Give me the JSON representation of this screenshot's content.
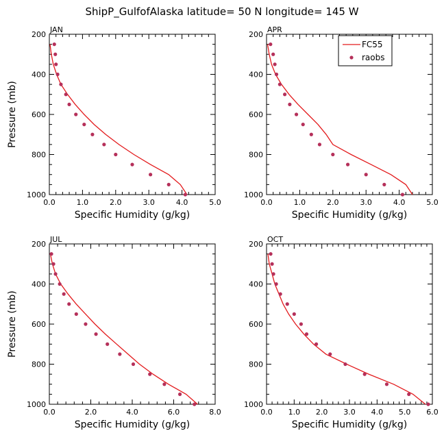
{
  "figure": {
    "title": "ShipP_GulfofAlaska  latitude= 50 N longitude= 145 W"
  },
  "colors": {
    "model_line": "#e31a1c",
    "obs_marker": "#b5305a",
    "axes": "#000000"
  },
  "legend": {
    "placement": "top-right of APR panel",
    "entries": [
      {
        "label": "FC55",
        "style": "line"
      },
      {
        "label": "raobs",
        "style": "marker"
      }
    ]
  },
  "chart_data": [
    {
      "type": "line",
      "panel_label": "JAN",
      "xlabel": "Specific Humidity (g/kg)",
      "ylabel": "Pressure (mb)",
      "xlim": [
        0,
        5
      ],
      "ylim": [
        1000,
        200
      ],
      "xticks": [
        "0.0",
        "1.0",
        "2.0",
        "3.0",
        "4.0",
        "5.0"
      ],
      "yticks": [
        "200",
        "400",
        "600",
        "800",
        "1000"
      ],
      "grid": false,
      "series": [
        {
          "name": "FC55",
          "style": "line",
          "x": [
            0.02,
            0.06,
            0.12,
            0.22,
            0.35,
            0.55,
            0.78,
            1.05,
            1.35,
            1.7,
            2.1,
            2.55,
            3.05,
            3.6,
            3.95,
            4.15
          ],
          "y": [
            250,
            300,
            350,
            400,
            450,
            500,
            550,
            600,
            650,
            700,
            750,
            800,
            850,
            900,
            950,
            1000
          ]
        },
        {
          "name": "raobs",
          "style": "marker",
          "x": [
            0.15,
            0.18,
            0.2,
            0.25,
            0.35,
            0.5,
            0.6,
            0.8,
            1.05,
            1.3,
            1.65,
            2.0,
            2.5,
            3.05,
            3.6,
            4.1
          ],
          "y": [
            250,
            300,
            350,
            400,
            450,
            500,
            550,
            600,
            650,
            700,
            750,
            800,
            850,
            900,
            950,
            1000
          ]
        }
      ]
    },
    {
      "type": "line",
      "panel_label": "APR",
      "xlabel": "Specific Humidity (g/kg)",
      "ylabel": "",
      "xlim": [
        0,
        5
      ],
      "ylim": [
        1000,
        200
      ],
      "xticks": [
        "0.0",
        "1.0",
        "2.0",
        "3.0",
        "4.0",
        "5.0"
      ],
      "yticks": [
        "200",
        "400",
        "600",
        "800",
        "1000"
      ],
      "grid": false,
      "series": [
        {
          "name": "FC55",
          "style": "line",
          "x": [
            0.03,
            0.08,
            0.15,
            0.27,
            0.45,
            0.68,
            0.95,
            1.25,
            1.55,
            1.8,
            2.0,
            2.55,
            3.15,
            3.75,
            4.2,
            4.4
          ],
          "y": [
            250,
            300,
            350,
            400,
            450,
            500,
            550,
            600,
            650,
            700,
            750,
            800,
            850,
            900,
            950,
            1000
          ]
        },
        {
          "name": "raobs",
          "style": "marker",
          "x": [
            0.12,
            0.2,
            0.25,
            0.3,
            0.4,
            0.55,
            0.7,
            0.9,
            1.1,
            1.35,
            1.6,
            2.0,
            2.45,
            3.0,
            3.55,
            4.1
          ],
          "y": [
            250,
            300,
            350,
            400,
            450,
            500,
            550,
            600,
            650,
            700,
            750,
            800,
            850,
            900,
            950,
            1000
          ]
        }
      ]
    },
    {
      "type": "line",
      "panel_label": "JUL",
      "xlabel": "Specific Humidity (g/kg)",
      "ylabel": "Pressure (mb)",
      "xlim": [
        0,
        8
      ],
      "ylim": [
        1000,
        200
      ],
      "xticks": [
        "0.0",
        "2.0",
        "4.0",
        "6.0",
        "8.0"
      ],
      "yticks": [
        "200",
        "400",
        "600",
        "800",
        "1000"
      ],
      "grid": false,
      "series": [
        {
          "name": "FC55",
          "style": "line",
          "x": [
            0.05,
            0.15,
            0.3,
            0.55,
            0.9,
            1.3,
            1.75,
            2.2,
            2.7,
            3.25,
            3.8,
            4.35,
            5.0,
            5.75,
            6.6,
            7.15
          ],
          "y": [
            250,
            300,
            350,
            400,
            450,
            500,
            550,
            600,
            650,
            700,
            750,
            800,
            850,
            900,
            950,
            1000
          ]
        },
        {
          "name": "raobs",
          "style": "marker",
          "x": [
            0.1,
            0.2,
            0.3,
            0.5,
            0.7,
            0.95,
            1.3,
            1.75,
            2.25,
            2.8,
            3.4,
            4.05,
            4.85,
            5.55,
            6.3,
            7.0
          ],
          "y": [
            250,
            300,
            350,
            400,
            450,
            500,
            550,
            600,
            650,
            700,
            750,
            800,
            850,
            900,
            950,
            1000
          ]
        }
      ]
    },
    {
      "type": "line",
      "panel_label": "OCT",
      "xlabel": "Specific Humidity (g/kg)",
      "ylabel": "",
      "xlim": [
        0,
        6
      ],
      "ylim": [
        1000,
        200
      ],
      "xticks": [
        "0.0",
        "1.0",
        "2.0",
        "3.0",
        "4.0",
        "5.0",
        "6.0"
      ],
      "yticks": [
        "200",
        "400",
        "600",
        "800",
        "1000"
      ],
      "grid": false,
      "series": [
        {
          "name": "FC55",
          "style": "line",
          "x": [
            0.05,
            0.1,
            0.2,
            0.3,
            0.45,
            0.6,
            0.8,
            1.05,
            1.35,
            1.7,
            2.15,
            2.9,
            3.7,
            4.6,
            5.3,
            5.75
          ],
          "y": [
            250,
            300,
            350,
            400,
            450,
            500,
            550,
            600,
            650,
            700,
            750,
            800,
            850,
            900,
            950,
            1000
          ]
        },
        {
          "name": "raobs",
          "style": "marker",
          "x": [
            0.15,
            0.2,
            0.25,
            0.35,
            0.5,
            0.75,
            1.0,
            1.25,
            1.45,
            1.8,
            2.3,
            2.85,
            3.55,
            4.35,
            5.15,
            5.85
          ],
          "y": [
            250,
            300,
            350,
            400,
            450,
            500,
            550,
            600,
            650,
            700,
            750,
            800,
            850,
            900,
            950,
            1000
          ]
        }
      ]
    }
  ]
}
